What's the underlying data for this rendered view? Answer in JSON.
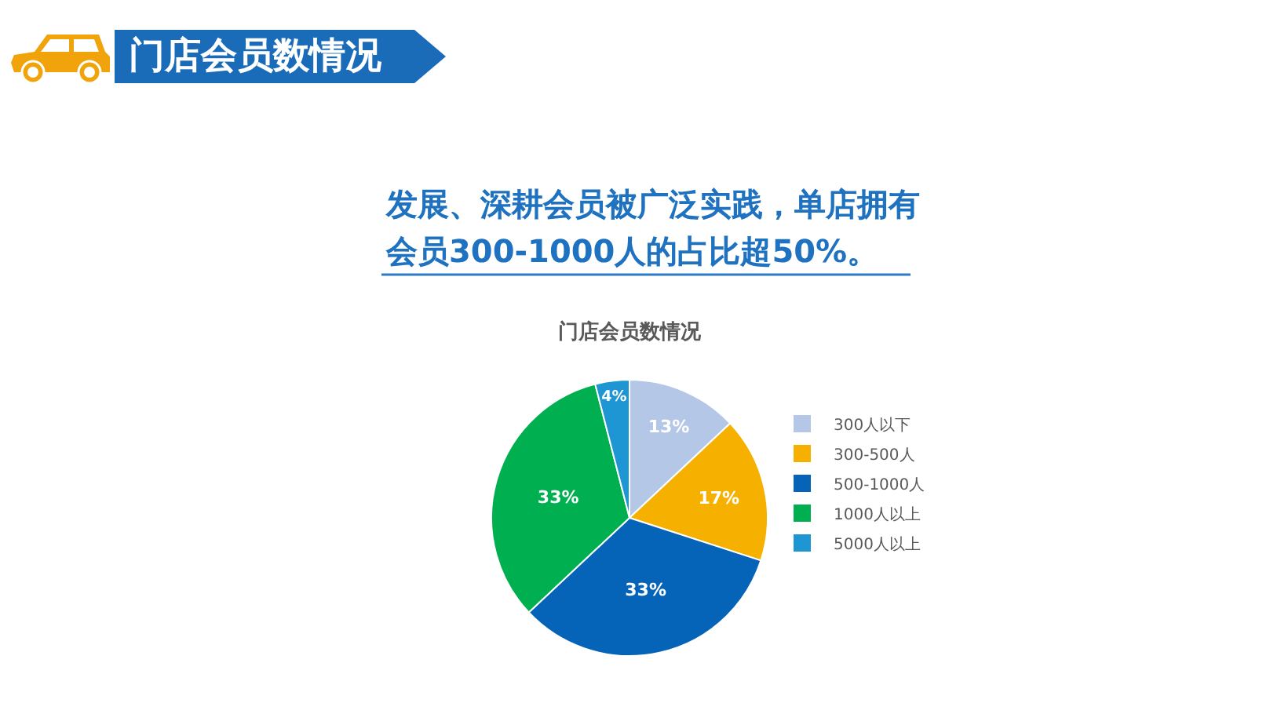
{
  "chart_data": {
    "type": "pie",
    "title": "门店会员数情况",
    "annotations": [
      "门店会员数情况",
      "发展、深耕会员被广泛实践，单店拥有",
      "会员300-1000人的占比超50%。"
    ],
    "categories": [
      "300人以下",
      "300-500人",
      "500-1000人",
      "1000人以上",
      "5000人以上"
    ],
    "values": [
      13,
      17,
      33,
      33,
      4
    ],
    "colors": [
      "#b4c7e7",
      "#f5b000",
      "#0563b8",
      "#00b050",
      "#1e96d4"
    ],
    "value_labels": [
      "13%",
      "17%",
      "33%",
      "33%",
      "4%"
    ],
    "legend": "right"
  }
}
